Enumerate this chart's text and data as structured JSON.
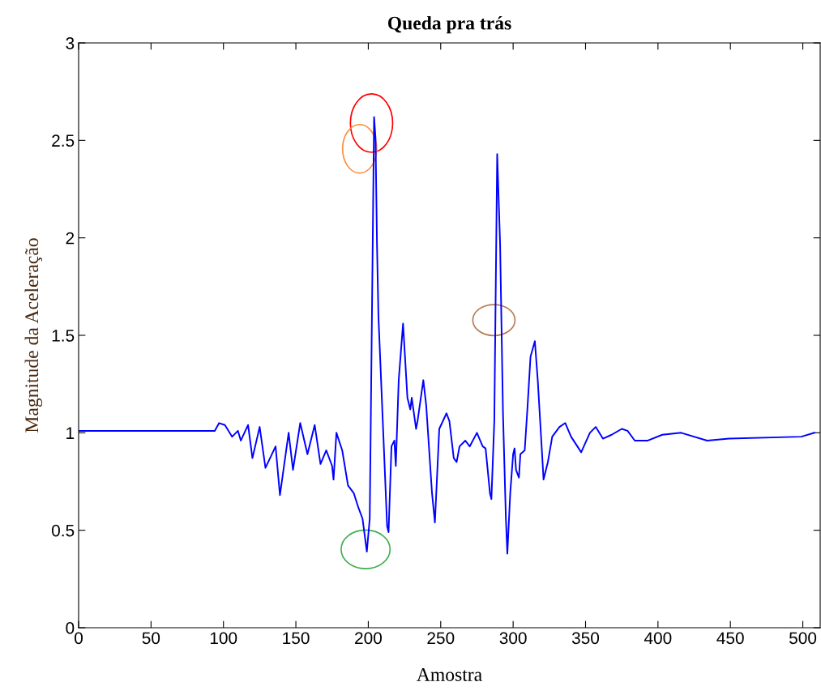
{
  "chart_data": {
    "type": "line",
    "title": "Queda pra trás",
    "xlabel": "Amostra",
    "ylabel": "Magnitude da Aceleração",
    "x": [
      0,
      94,
      97,
      101,
      106,
      110,
      112,
      117,
      120,
      125,
      129,
      136,
      139,
      145,
      148,
      153,
      158,
      163,
      167,
      171,
      175,
      176,
      178,
      182,
      186,
      190,
      193,
      196,
      199,
      201,
      204,
      205,
      206,
      207,
      210,
      213,
      214,
      216,
      218,
      219,
      221,
      224,
      227,
      229,
      230,
      233,
      234,
      238,
      240,
      244,
      246,
      249,
      254,
      256,
      259,
      261,
      263,
      267,
      270,
      275,
      279,
      281,
      284,
      285,
      287,
      289,
      291,
      293,
      295,
      296,
      298,
      300,
      301,
      302,
      304,
      305,
      308,
      310,
      312,
      315,
      317,
      320,
      321,
      324,
      327,
      332,
      336,
      340,
      347,
      353,
      357,
      362,
      368,
      375,
      379,
      384,
      393,
      403,
      416,
      434,
      449,
      499,
      508
    ],
    "series": [
      {
        "color": "#0000ff",
        "values": [
          1.01,
          1.01,
          1.05,
          1.04,
          0.98,
          1.01,
          0.96,
          1.04,
          0.87,
          1.03,
          0.82,
          0.93,
          0.68,
          1.0,
          0.81,
          1.05,
          0.89,
          1.04,
          0.84,
          0.91,
          0.83,
          0.76,
          1.0,
          0.91,
          0.73,
          0.69,
          0.62,
          0.56,
          0.39,
          0.56,
          2.62,
          2.51,
          1.97,
          1.6,
          1.06,
          0.52,
          0.49,
          0.93,
          0.96,
          0.83,
          1.27,
          1.56,
          1.18,
          1.12,
          1.18,
          1.02,
          1.06,
          1.27,
          1.14,
          0.69,
          0.54,
          1.02,
          1.1,
          1.06,
          0.87,
          0.85,
          0.93,
          0.96,
          0.93,
          1.0,
          0.93,
          0.92,
          0.69,
          0.66,
          1.06,
          2.43,
          1.97,
          1.1,
          0.56,
          0.38,
          0.69,
          0.89,
          0.92,
          0.81,
          0.77,
          0.89,
          0.91,
          1.14,
          1.39,
          1.47,
          1.27,
          0.89,
          0.76,
          0.85,
          0.98,
          1.03,
          1.05,
          0.98,
          0.9,
          1.0,
          1.03,
          0.97,
          0.99,
          1.02,
          1.01,
          0.96,
          0.96,
          0.99,
          1.0,
          0.96,
          0.97,
          0.98,
          1.0
        ]
      }
    ],
    "xlim": [
      0,
      512
    ],
    "ylim": [
      0,
      3
    ],
    "xticks": [
      0,
      50,
      100,
      150,
      200,
      250,
      300,
      350,
      400,
      450,
      500
    ],
    "yticks": [
      0,
      0.5,
      1,
      1.5,
      2,
      2.5,
      3
    ],
    "grid": false,
    "marker": "none",
    "line_style": "solid"
  }
}
